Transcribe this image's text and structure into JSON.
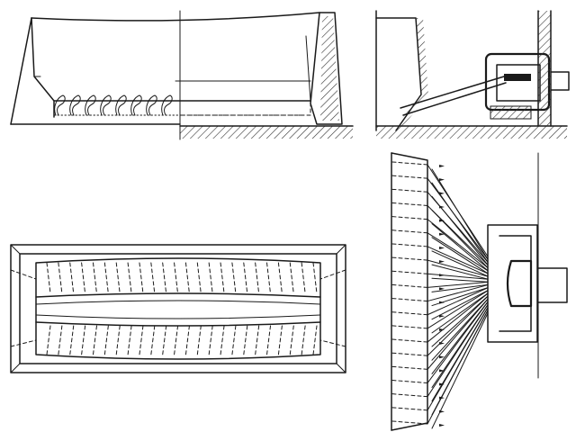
{
  "diagram": {
    "type": "technical-drawing",
    "views": [
      {
        "id": "elevation",
        "label": ""
      },
      {
        "id": "side-section",
        "label": ""
      },
      {
        "id": "plan",
        "label": ""
      },
      {
        "id": "fan-plan",
        "label": ""
      }
    ],
    "elevation_flue_count": 8,
    "plan_flue_count": 24,
    "fan_pipe_count": 20
  },
  "colors": {
    "ink": "#1a1a1a",
    "paper": "#ffffff",
    "hatch": "#333333"
  }
}
